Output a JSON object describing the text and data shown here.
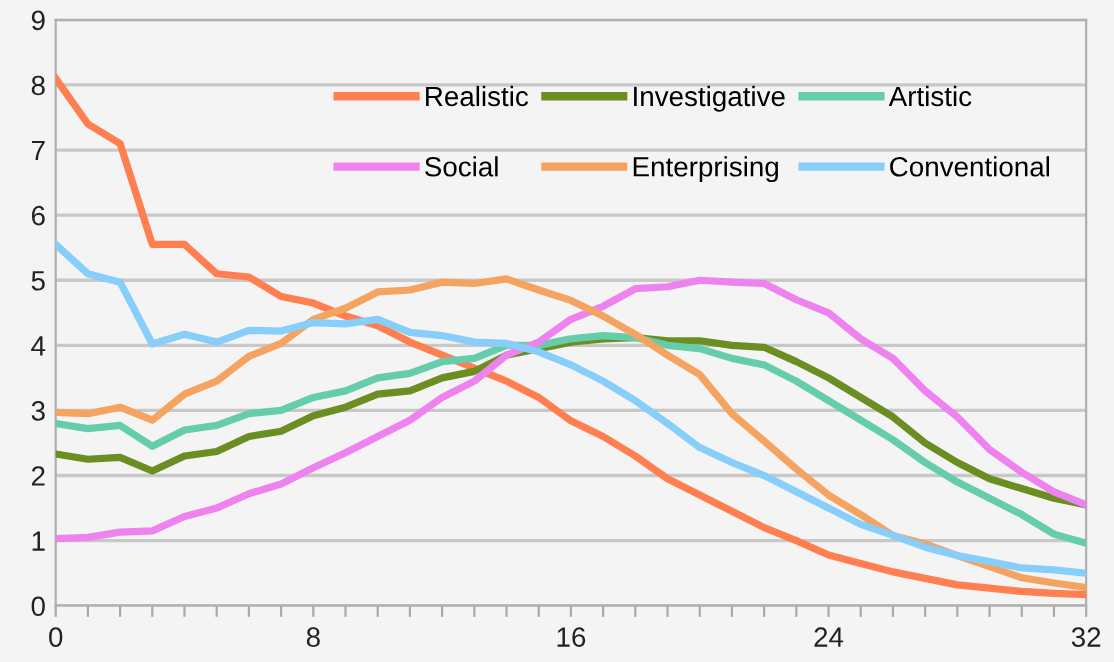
{
  "chart_data": {
    "type": "line",
    "x": [
      0,
      1,
      2,
      3,
      4,
      5,
      6,
      7,
      8,
      9,
      10,
      11,
      12,
      13,
      14,
      15,
      16,
      17,
      18,
      19,
      20,
      21,
      22,
      23,
      24,
      25,
      26,
      27,
      28,
      29,
      30,
      31,
      32
    ],
    "series": [
      {
        "name": "Realistic",
        "color": "#ff7f50",
        "values": [
          8.1,
          7.4,
          7.1,
          5.55,
          5.55,
          5.1,
          5.05,
          4.75,
          4.65,
          4.45,
          4.3,
          4.05,
          3.85,
          3.65,
          3.45,
          3.2,
          2.84,
          2.6,
          2.3,
          1.95,
          1.7,
          1.45,
          1.2,
          1.0,
          0.78,
          0.65,
          0.52,
          0.42,
          0.32,
          0.27,
          0.22,
          0.19,
          0.17
        ]
      },
      {
        "name": "Investigative",
        "color": "#6b8e23",
        "values": [
          2.33,
          2.25,
          2.28,
          2.07,
          2.3,
          2.37,
          2.6,
          2.68,
          2.92,
          3.05,
          3.25,
          3.3,
          3.5,
          3.6,
          3.85,
          3.95,
          4.05,
          4.1,
          4.12,
          4.07,
          4.07,
          4.0,
          3.97,
          3.75,
          3.5,
          3.2,
          2.9,
          2.5,
          2.2,
          1.95,
          1.8,
          1.65,
          1.55
        ]
      },
      {
        "name": "Artistic",
        "color": "#66cdaa",
        "values": [
          2.8,
          2.72,
          2.77,
          2.45,
          2.7,
          2.77,
          2.95,
          3.0,
          3.2,
          3.3,
          3.5,
          3.57,
          3.75,
          3.8,
          4.0,
          4.0,
          4.1,
          4.15,
          4.12,
          4.0,
          3.95,
          3.8,
          3.7,
          3.45,
          3.15,
          2.85,
          2.55,
          2.2,
          1.9,
          1.65,
          1.4,
          1.1,
          0.96
        ]
      },
      {
        "name": "Social",
        "color": "#ee82ee",
        "values": [
          1.03,
          1.05,
          1.13,
          1.15,
          1.37,
          1.5,
          1.72,
          1.87,
          2.12,
          2.35,
          2.6,
          2.85,
          3.2,
          3.45,
          3.85,
          4.05,
          4.4,
          4.6,
          4.87,
          4.9,
          5.0,
          4.97,
          4.95,
          4.7,
          4.5,
          4.1,
          3.8,
          3.3,
          2.9,
          2.4,
          2.05,
          1.75,
          1.55
        ]
      },
      {
        "name": "Enterprising",
        "color": "#f4a460",
        "values": [
          2.97,
          2.95,
          3.05,
          2.85,
          3.25,
          3.45,
          3.83,
          4.03,
          4.4,
          4.57,
          4.82,
          4.85,
          4.97,
          4.95,
          5.02,
          4.85,
          4.69,
          4.45,
          4.17,
          3.85,
          3.55,
          2.95,
          2.53,
          2.1,
          1.7,
          1.4,
          1.08,
          0.95,
          0.77,
          0.6,
          0.43,
          0.35,
          0.28
        ]
      },
      {
        "name": "Conventional",
        "color": "#87cefa",
        "values": [
          5.55,
          5.1,
          4.97,
          4.02,
          4.17,
          4.05,
          4.23,
          4.22,
          4.35,
          4.33,
          4.4,
          4.2,
          4.15,
          4.05,
          4.03,
          3.9,
          3.7,
          3.45,
          3.15,
          2.8,
          2.43,
          2.2,
          2.0,
          1.75,
          1.5,
          1.25,
          1.08,
          0.9,
          0.77,
          0.68,
          0.58,
          0.55,
          0.5
        ]
      }
    ],
    "xlim": [
      0,
      32
    ],
    "xticks": [
      0,
      {
        "value": 1,
        "label": null
      },
      {
        "value": 2,
        "label": null
      },
      {
        "value": 3,
        "label": null
      },
      {
        "value": 4,
        "label": null
      },
      {
        "value": 5,
        "label": null
      },
      {
        "value": 6,
        "label": null
      },
      {
        "value": 7,
        "label": null
      },
      8,
      {
        "value": 9,
        "label": null
      },
      {
        "value": 10,
        "label": null
      },
      {
        "value": 11,
        "label": null
      },
      {
        "value": 12,
        "label": null
      },
      {
        "value": 13,
        "label": null
      },
      {
        "value": 14,
        "label": null
      },
      {
        "value": 15,
        "label": null
      },
      16,
      {
        "value": 17,
        "label": null
      },
      {
        "value": 18,
        "label": null
      },
      {
        "value": 19,
        "label": null
      },
      {
        "value": 20,
        "label": null
      },
      {
        "value": 21,
        "label": null
      },
      {
        "value": 22,
        "label": null
      },
      {
        "value": 23,
        "label": null
      },
      24,
      {
        "value": 25,
        "label": null
      },
      {
        "value": 26,
        "label": null
      },
      {
        "value": 27,
        "label": null
      },
      {
        "value": 28,
        "label": null
      },
      {
        "value": 29,
        "label": null
      },
      {
        "value": 30,
        "label": null
      },
      {
        "value": 31,
        "label": null
      },
      32
    ],
    "ylim": [
      0,
      9
    ],
    "yticks": [
      0,
      1,
      2,
      3,
      4,
      5,
      6,
      7,
      8,
      9
    ],
    "grid": "y",
    "legend": "top right",
    "marker": "none",
    "line_style": "solid"
  }
}
